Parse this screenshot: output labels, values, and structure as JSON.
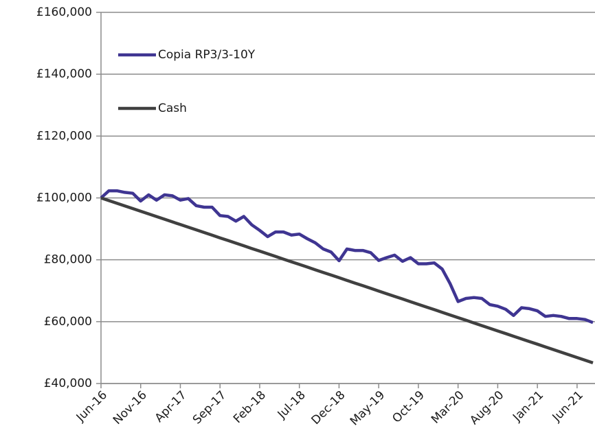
{
  "chart_data": {
    "type": "line",
    "categories": [
      "Jun-16",
      null,
      null,
      null,
      null,
      "Nov-16",
      null,
      null,
      null,
      null,
      "Apr-17",
      null,
      null,
      null,
      null,
      "Sep-17",
      null,
      null,
      null,
      null,
      "Feb-18",
      null,
      null,
      null,
      null,
      "Jul-18",
      null,
      null,
      null,
      null,
      "Dec-18",
      null,
      null,
      null,
      null,
      "May-19",
      null,
      null,
      null,
      null,
      "Oct-19",
      null,
      null,
      null,
      null,
      "Mar-20",
      null,
      null,
      null,
      null,
      "Aug-20",
      null,
      null,
      null,
      null,
      "Jan-21",
      null,
      null,
      null,
      null,
      "Jun-21",
      null,
      null
    ],
    "series": [
      {
        "name": "Copia RP3/3-10Y",
        "color": "#3f3592",
        "values": [
          100000,
          102300,
          102300,
          101800,
          101500,
          99000,
          101000,
          99300,
          101000,
          100700,
          99300,
          99800,
          97500,
          97000,
          97000,
          94300,
          94000,
          92500,
          94000,
          91300,
          89500,
          87500,
          89000,
          89000,
          88000,
          88300,
          86800,
          85500,
          83500,
          82500,
          79700,
          83500,
          83000,
          83000,
          82300,
          79800,
          80700,
          81500,
          79500,
          80700,
          78700,
          78700,
          79000,
          77000,
          72300,
          66500,
          67500,
          67800,
          67500,
          65500,
          65000,
          64000,
          62000,
          64500,
          64200,
          63500,
          61700,
          62000,
          61700,
          61000,
          61000,
          60700,
          59700
        ]
      },
      {
        "name": "Cash",
        "color": "#404040",
        "values": [
          100000,
          99140,
          98280,
          97420,
          96560,
          95700,
          94840,
          93980,
          93120,
          92260,
          91400,
          90540,
          89680,
          88820,
          87960,
          87100,
          86240,
          85380,
          84520,
          83660,
          82800,
          81940,
          81080,
          80220,
          79360,
          78500,
          77640,
          76780,
          75920,
          75060,
          74200,
          73340,
          72480,
          71620,
          70760,
          69900,
          69040,
          68180,
          67320,
          66460,
          65600,
          64740,
          63880,
          63020,
          62160,
          61300,
          60440,
          59580,
          58720,
          57860,
          57000,
          56140,
          55280,
          54420,
          53560,
          52700,
          51840,
          50980,
          50120,
          49260,
          48400,
          47540,
          46680
        ]
      }
    ],
    "ylim": [
      40000,
      160000
    ],
    "yticks": [
      {
        "value": 40000,
        "label": "£40,000"
      },
      {
        "value": 60000,
        "label": "£60,000"
      },
      {
        "value": 80000,
        "label": "£80,000"
      },
      {
        "value": 100000,
        "label": "£100,000"
      },
      {
        "value": 120000,
        "label": "£120,000"
      },
      {
        "value": 140000,
        "label": "£140,000"
      },
      {
        "value": 160000,
        "label": "£160,000"
      }
    ],
    "grid": true,
    "legend": "upper left"
  }
}
